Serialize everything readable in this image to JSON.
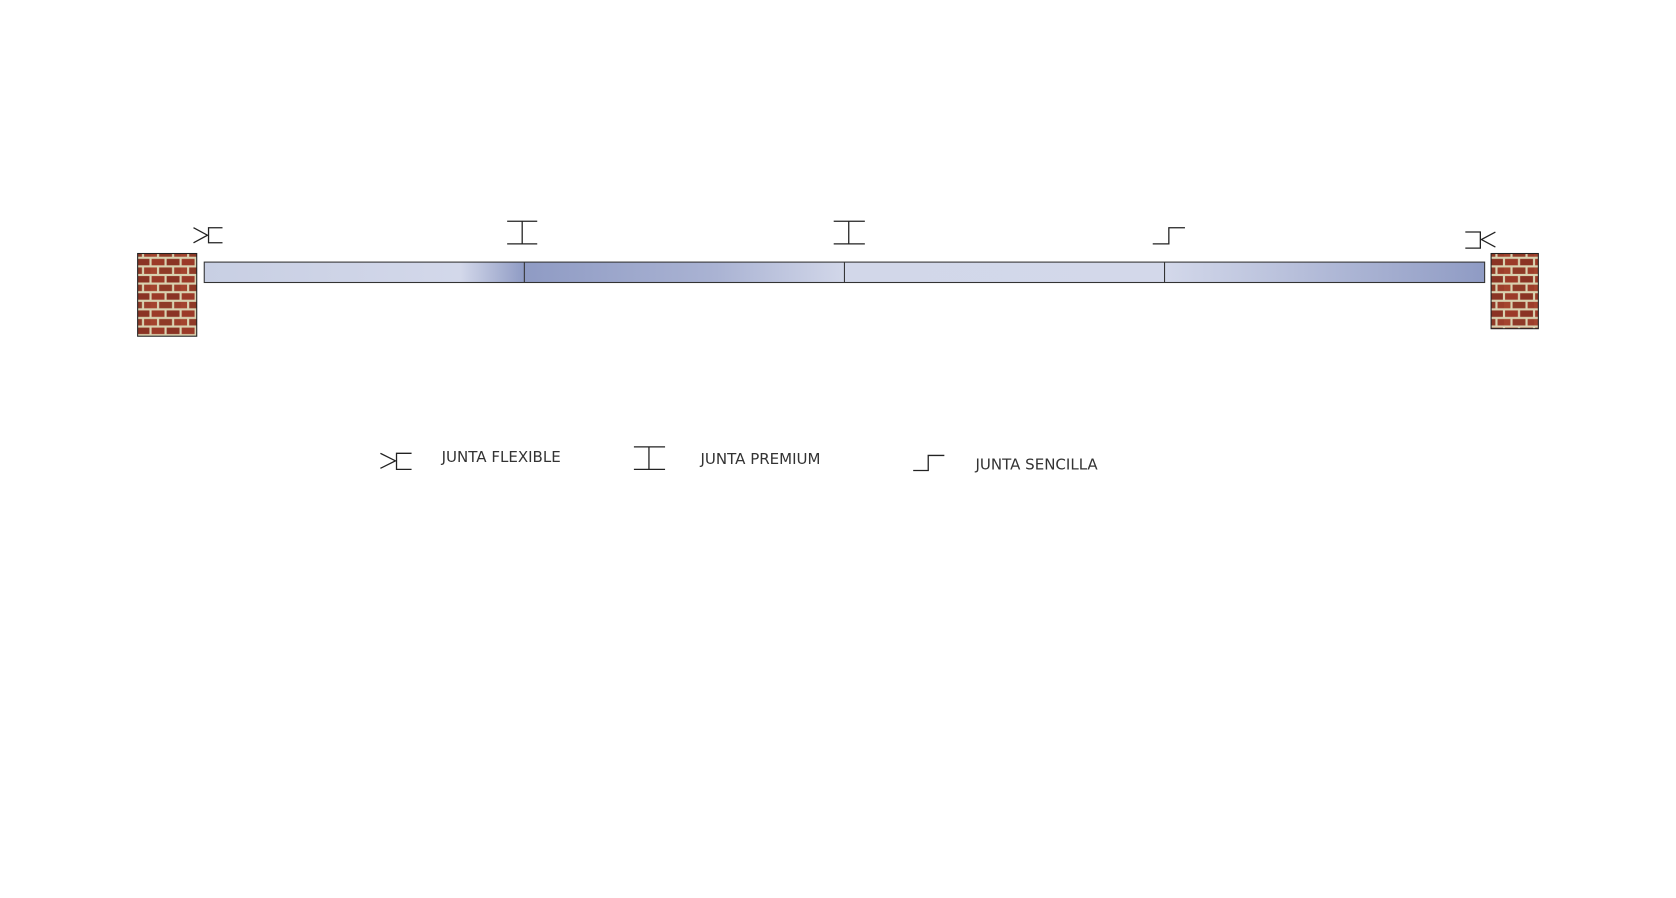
{
  "legend": [
    {
      "label": "JUNTA FLEXIBLE"
    },
    {
      "label": "JUNTA PREMIUM"
    },
    {
      "label": "JUNTA SENCILLA"
    }
  ]
}
